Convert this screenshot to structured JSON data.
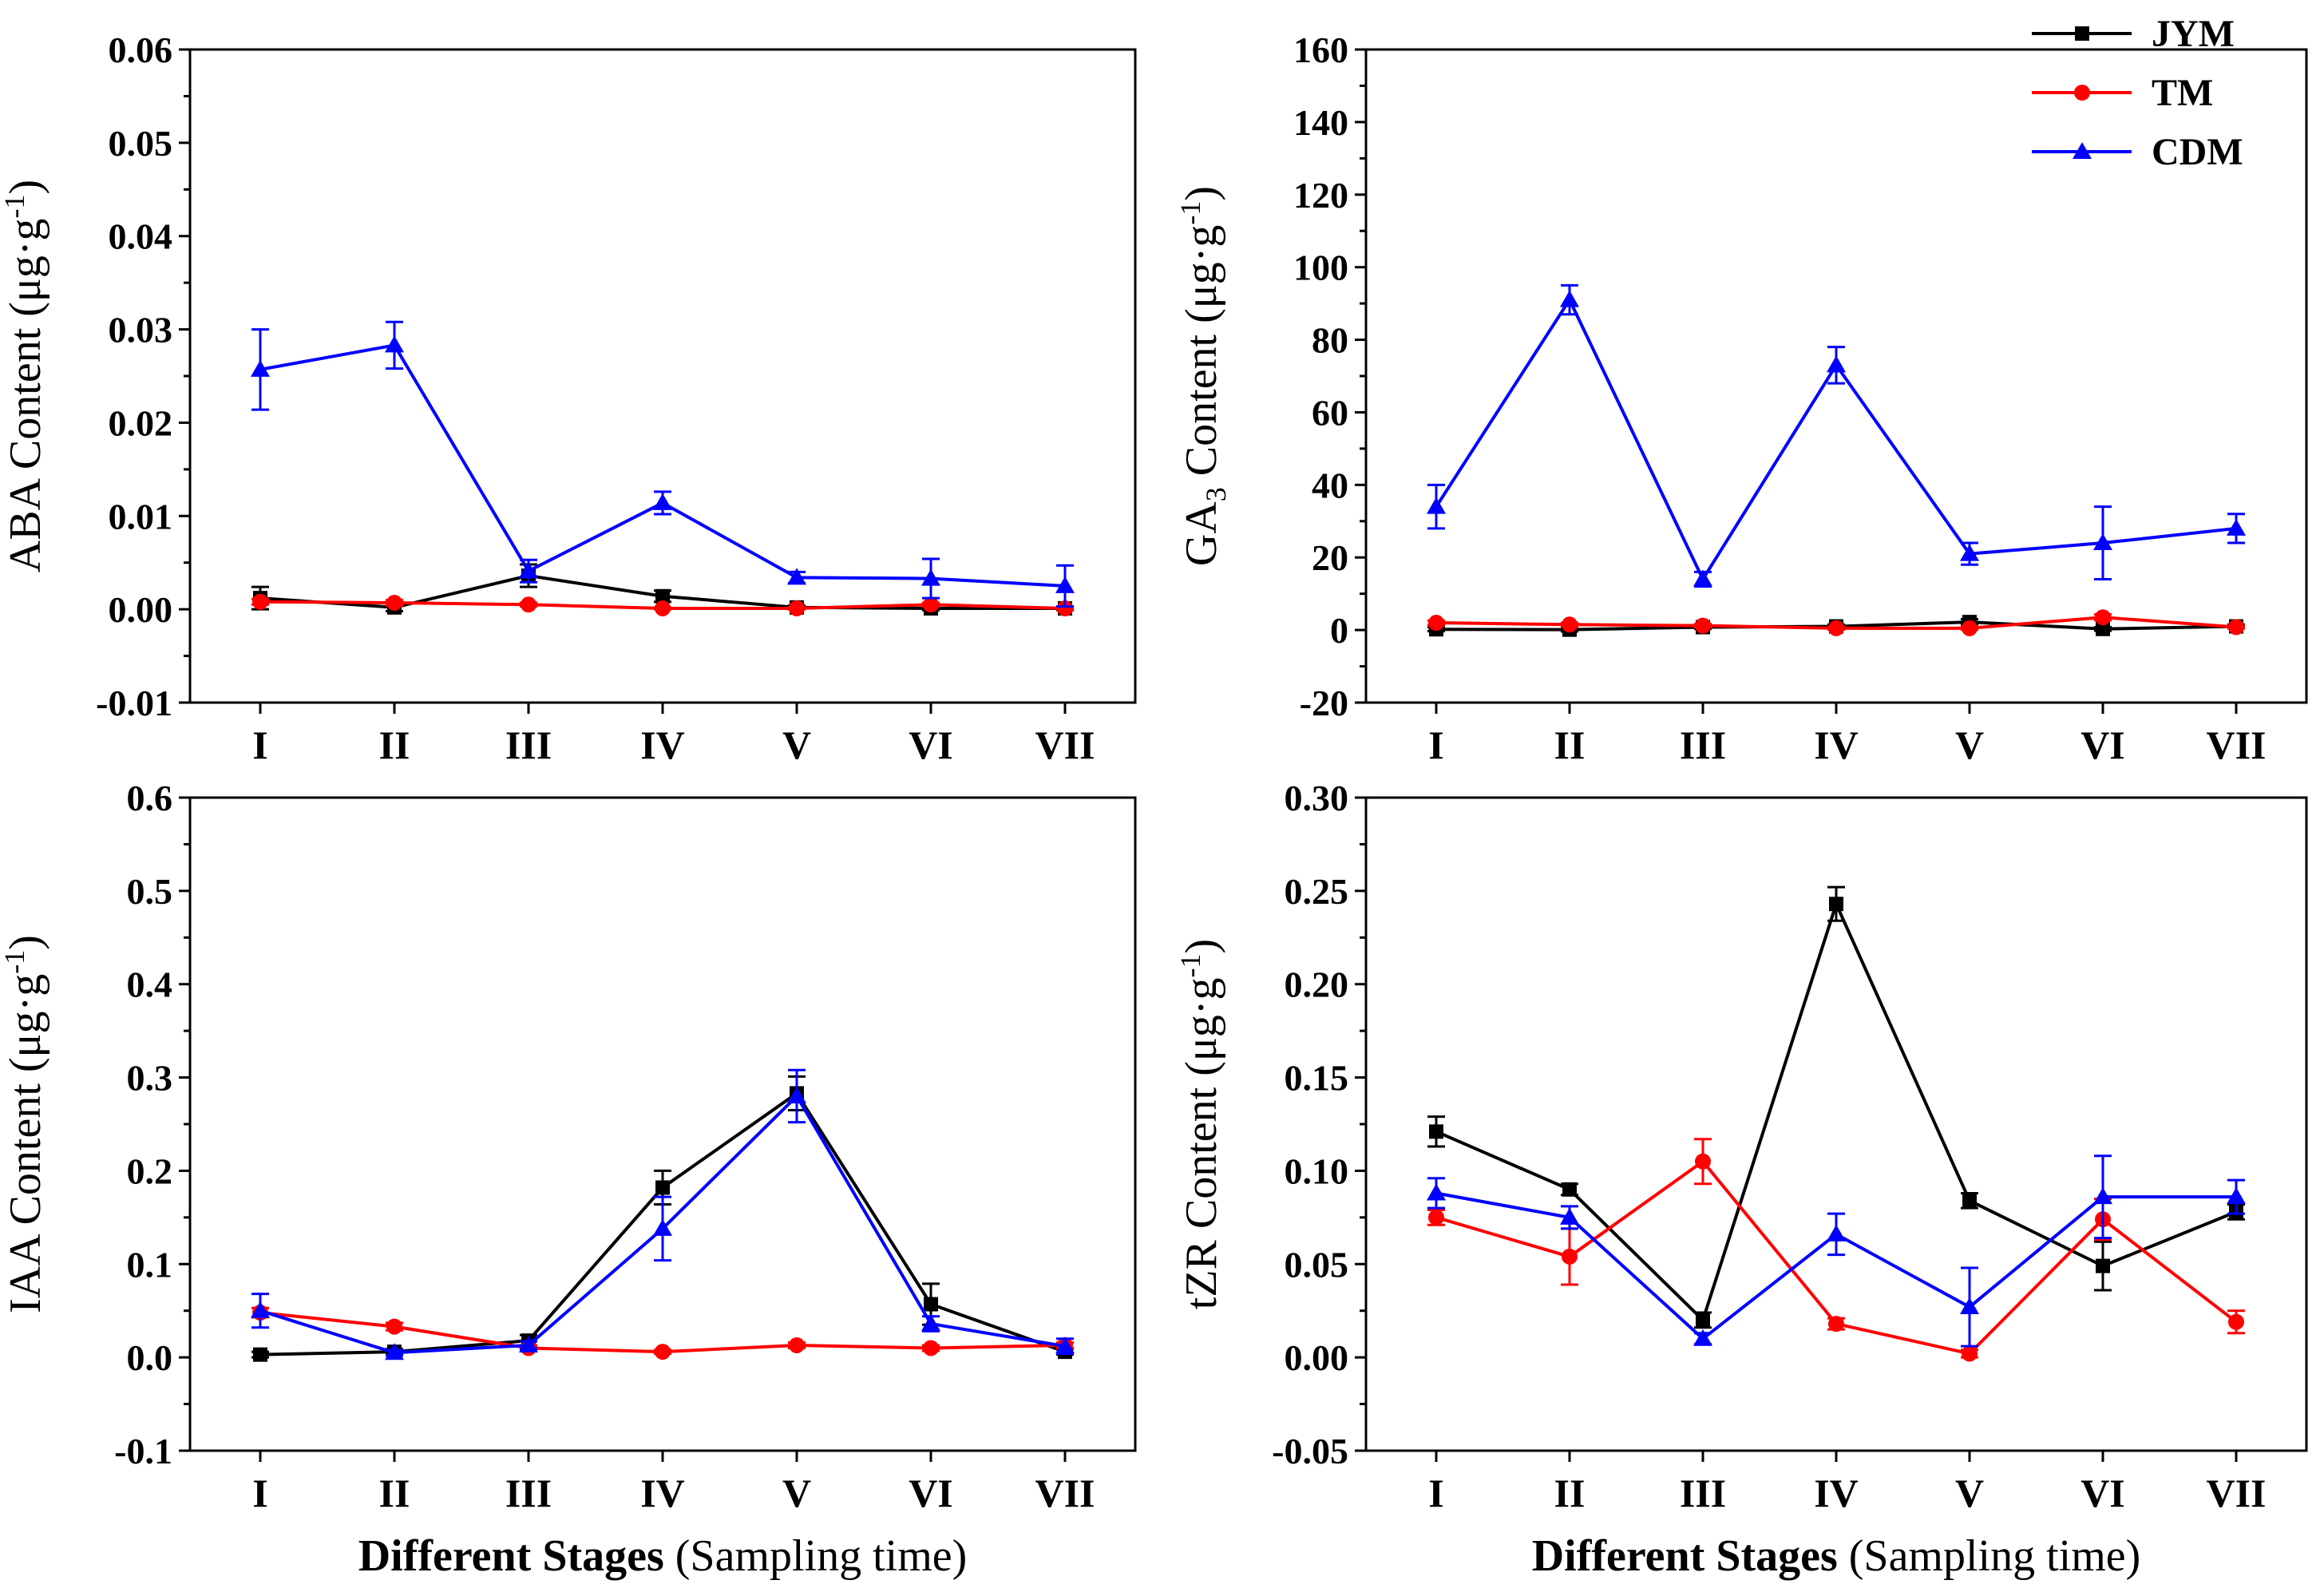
{
  "legend": [
    {
      "name": "JYM",
      "color": "#000000",
      "marker": "square"
    },
    {
      "name": "TM",
      "color": "#ff0000",
      "marker": "circle"
    },
    {
      "name": "CDM",
      "color": "#0000ff",
      "marker": "triangle"
    }
  ],
  "x_axis_title_bold": "Different Stages",
  "x_axis_title_rest": "(Sampling time)",
  "chart_data": [
    {
      "id": "aba",
      "type": "line",
      "ylabel_main": "ABA Content",
      "ylabel_unit": "(μg·g",
      "ylabel_sub": "",
      "ylabel_rest": "",
      "ylabel_sup": "-1",
      "ylabel_close": ")",
      "xlabel_show": false,
      "categories": [
        "I",
        "II",
        "III",
        "IV",
        "V",
        "VI",
        "VII"
      ],
      "ylim": [
        -0.01,
        0.06
      ],
      "yticks": [
        -0.01,
        0.0,
        0.01,
        0.02,
        0.03,
        0.04,
        0.05,
        0.06
      ],
      "ytick_labels": [
        "-0.01",
        "0.00",
        "0.01",
        "0.02",
        "0.03",
        "0.04",
        "0.05",
        "0.06"
      ],
      "series": [
        {
          "name": "JYM",
          "values": [
            0.0012,
            0.0002,
            0.0036,
            0.0014,
            0.0002,
            0.0001,
            0.0001
          ],
          "errors": [
            0.0012,
            0.0004,
            0.0012,
            0.0006,
            0.0002,
            0.0002,
            0.0002
          ]
        },
        {
          "name": "TM",
          "values": [
            0.0008,
            0.0007,
            0.0005,
            0.0001,
            0.0001,
            0.0005,
            0.0001
          ],
          "errors": [
            0.0003,
            0.0003,
            0.0002,
            0.0001,
            0.0001,
            0.0002,
            0.0001
          ]
        },
        {
          "name": "CDM",
          "values": [
            0.0257,
            0.0283,
            0.0041,
            0.0114,
            0.0034,
            0.0033,
            0.0025
          ],
          "errors": [
            0.0043,
            0.0025,
            0.0012,
            0.0012,
            0.0006,
            0.0021,
            0.0022
          ]
        }
      ]
    },
    {
      "id": "ga3",
      "type": "line",
      "ylabel_main": "GA",
      "ylabel_sub": "3",
      "ylabel_rest": " Content",
      "ylabel_unit": "(μg·g",
      "ylabel_sup": "-1",
      "ylabel_close": ")",
      "xlabel_show": false,
      "categories": [
        "I",
        "II",
        "III",
        "IV",
        "V",
        "VI",
        "VII"
      ],
      "ylim": [
        -20,
        160
      ],
      "yticks": [
        -20,
        0,
        20,
        40,
        60,
        80,
        100,
        120,
        140,
        160
      ],
      "ytick_labels": [
        "-20",
        "0",
        "20",
        "40",
        "60",
        "80",
        "100",
        "120",
        "140",
        "160"
      ],
      "series": [
        {
          "name": "JYM",
          "values": [
            0.2,
            0.1,
            0.8,
            1.0,
            2.2,
            0.3,
            1.0
          ],
          "errors": [
            0.5,
            0.5,
            0.5,
            0.5,
            0.8,
            0.5,
            0.5
          ]
        },
        {
          "name": "TM",
          "values": [
            2.0,
            1.5,
            1.2,
            0.5,
            0.5,
            3.5,
            0.8
          ],
          "errors": [
            0.6,
            0.5,
            0.5,
            0.4,
            0.4,
            0.8,
            0.4
          ]
        },
        {
          "name": "CDM",
          "values": [
            34,
            91,
            14,
            73,
            21,
            24,
            28
          ],
          "errors": [
            6,
            4,
            2,
            5,
            3,
            10,
            4
          ]
        }
      ]
    },
    {
      "id": "iaa",
      "type": "line",
      "ylabel_main": "IAA Content",
      "ylabel_unit": "(μg·g",
      "ylabel_sub": "",
      "ylabel_rest": "",
      "ylabel_sup": "-1",
      "ylabel_close": ")",
      "xlabel_show": true,
      "categories": [
        "I",
        "II",
        "III",
        "IV",
        "V",
        "VI",
        "VII"
      ],
      "ylim": [
        -0.1,
        0.6
      ],
      "yticks": [
        -0.1,
        0.0,
        0.1,
        0.2,
        0.3,
        0.4,
        0.5,
        0.6
      ],
      "ytick_labels": [
        "-0.1",
        "0.0",
        "0.1",
        "0.2",
        "0.3",
        "0.4",
        "0.5",
        "0.6"
      ],
      "series": [
        {
          "name": "JYM",
          "values": [
            0.003,
            0.006,
            0.018,
            0.182,
            0.283,
            0.057,
            0.006
          ],
          "errors": [
            0.003,
            0.003,
            0.006,
            0.018,
            0.018,
            0.022,
            0.003
          ]
        },
        {
          "name": "TM",
          "values": [
            0.048,
            0.033,
            0.01,
            0.006,
            0.013,
            0.01,
            0.013
          ],
          "errors": [
            0.005,
            0.004,
            0.003,
            0.002,
            0.003,
            0.003,
            0.003
          ]
        },
        {
          "name": "CDM",
          "values": [
            0.05,
            0.005,
            0.013,
            0.138,
            0.28,
            0.036,
            0.012
          ],
          "errors": [
            0.018,
            0.003,
            0.004,
            0.034,
            0.028,
            0.008,
            0.008
          ]
        }
      ]
    },
    {
      "id": "tzr",
      "type": "line",
      "ylabel_main": "tZR Content",
      "ylabel_unit": "(μg·g",
      "ylabel_sub": "",
      "ylabel_rest": "",
      "ylabel_sup": "-1",
      "ylabel_close": ")",
      "xlabel_show": true,
      "categories": [
        "I",
        "II",
        "III",
        "IV",
        "V",
        "VI",
        "VII"
      ],
      "ylim": [
        -0.05,
        0.3
      ],
      "yticks": [
        -0.05,
        0.0,
        0.05,
        0.1,
        0.15,
        0.2,
        0.25,
        0.3
      ],
      "ytick_labels": [
        "-0.05",
        "0.00",
        "0.05",
        "0.10",
        "0.15",
        "0.20",
        "0.25",
        "0.30"
      ],
      "series": [
        {
          "name": "JYM",
          "values": [
            0.121,
            0.09,
            0.02,
            0.243,
            0.084,
            0.049,
            0.078
          ],
          "errors": [
            0.008,
            0.003,
            0.004,
            0.009,
            0.004,
            0.013,
            0.004
          ]
        },
        {
          "name": "TM",
          "values": [
            0.075,
            0.054,
            0.105,
            0.018,
            0.002,
            0.074,
            0.019
          ],
          "errors": [
            0.004,
            0.015,
            0.012,
            0.003,
            0.002,
            0.011,
            0.006
          ]
        },
        {
          "name": "CDM",
          "values": [
            0.088,
            0.075,
            0.01,
            0.066,
            0.027,
            0.086,
            0.086
          ],
          "errors": [
            0.008,
            0.006,
            0.003,
            0.011,
            0.021,
            0.022,
            0.009
          ]
        }
      ]
    }
  ]
}
